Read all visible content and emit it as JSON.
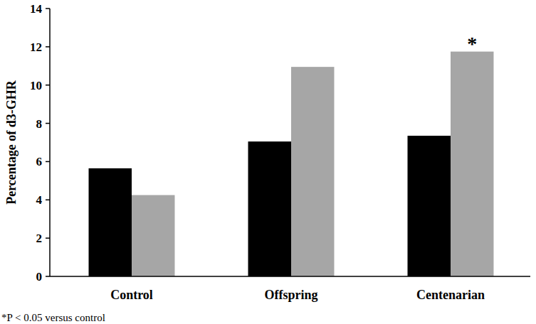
{
  "chart_data": {
    "type": "bar",
    "y_label": "Percentage of d3-GHR",
    "categories": [
      "Control",
      "Offspring",
      "Centenarian"
    ],
    "series": [
      {
        "color": "#000000",
        "values": [
          5.65,
          7.05,
          7.35
        ]
      },
      {
        "color": "#a6a6a6",
        "values": [
          4.25,
          10.95,
          11.75
        ]
      }
    ],
    "ylim": [
      0,
      14
    ],
    "yticks": [
      0,
      2,
      4,
      6,
      8,
      10,
      12,
      14
    ],
    "grid": false,
    "annotations": [
      {
        "text": "*",
        "category": 2,
        "series": 1
      }
    ],
    "footnote": "*P < 0.05 versus control"
  }
}
